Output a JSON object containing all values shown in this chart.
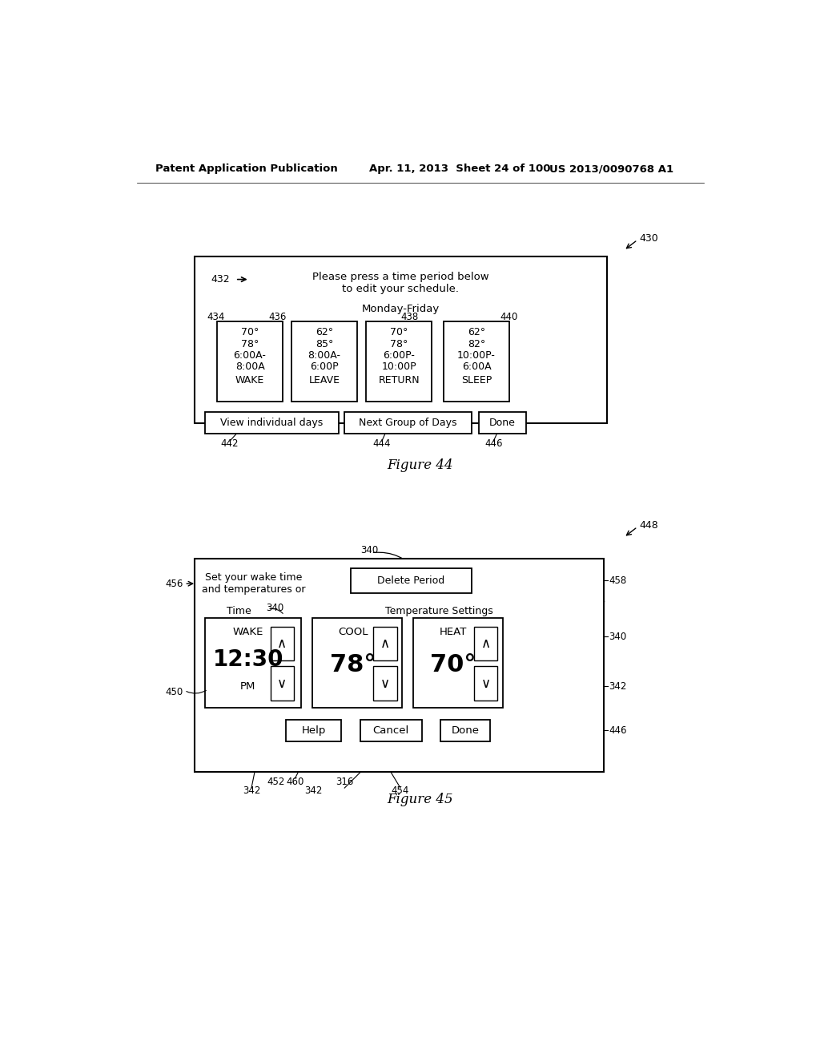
{
  "bg_color": "#ffffff",
  "header_text_left": "Patent Application Publication",
  "header_text_mid": "Apr. 11, 2013  Sheet 24 of 100",
  "header_text_right": "US 2013/0090768 A1",
  "fig44": {
    "ref_430": "430",
    "ref_432": "432",
    "ref_434": "434",
    "ref_436": "436",
    "ref_438": "438",
    "ref_440": "440",
    "ref_442": "442",
    "ref_444": "444",
    "ref_446": "446",
    "header_msg_line1": "Please press a time period below",
    "header_msg_line2": "to edit your schedule.",
    "day_label": "Monday-Friday",
    "cards": [
      {
        "lines": [
          "70°",
          "78°",
          "6:00A-",
          "8:00A",
          "WAKE"
        ]
      },
      {
        "lines": [
          "62°",
          "85°",
          "8:00A-",
          "6:00P",
          "LEAVE"
        ]
      },
      {
        "lines": [
          "70°",
          "78°",
          "6:00P-",
          "10:00P",
          "RETURN"
        ]
      },
      {
        "lines": [
          "62°",
          "82°",
          "10:00P-",
          "6:00A",
          "SLEEP"
        ]
      }
    ],
    "btn1": "View individual days",
    "btn2": "Next Group of Days",
    "btn3": "Done",
    "fig_label": "Figure 44"
  },
  "fig45": {
    "ref_448": "448",
    "ref_340_top": "340",
    "ref_340_time": "340",
    "ref_340_right": "340",
    "ref_342_right": "342",
    "ref_456": "456",
    "ref_458": "458",
    "ref_450": "450",
    "ref_342_low": "342",
    "ref_452": "452",
    "ref_460": "460",
    "ref_342_cancel": "342",
    "ref_316": "316",
    "ref_454": "454",
    "ref_446": "446",
    "top_left_line1": "Set your wake time",
    "top_left_line2": "and temperatures or",
    "delete_btn": "Delete Period",
    "time_lbl": "Time",
    "temp_lbl": "Temperature Settings",
    "wake_lbl": "WAKE",
    "time_val": "12:30",
    "pm_lbl": "PM",
    "cool_lbl": "COOL",
    "cool_val": "78°",
    "heat_lbl": "HEAT",
    "heat_val": "70°",
    "up_arrow": "∧",
    "dn_arrow": "∨",
    "help_btn": "Help",
    "cancel_btn": "Cancel",
    "done_btn": "Done",
    "fig_label": "Figure 45"
  }
}
